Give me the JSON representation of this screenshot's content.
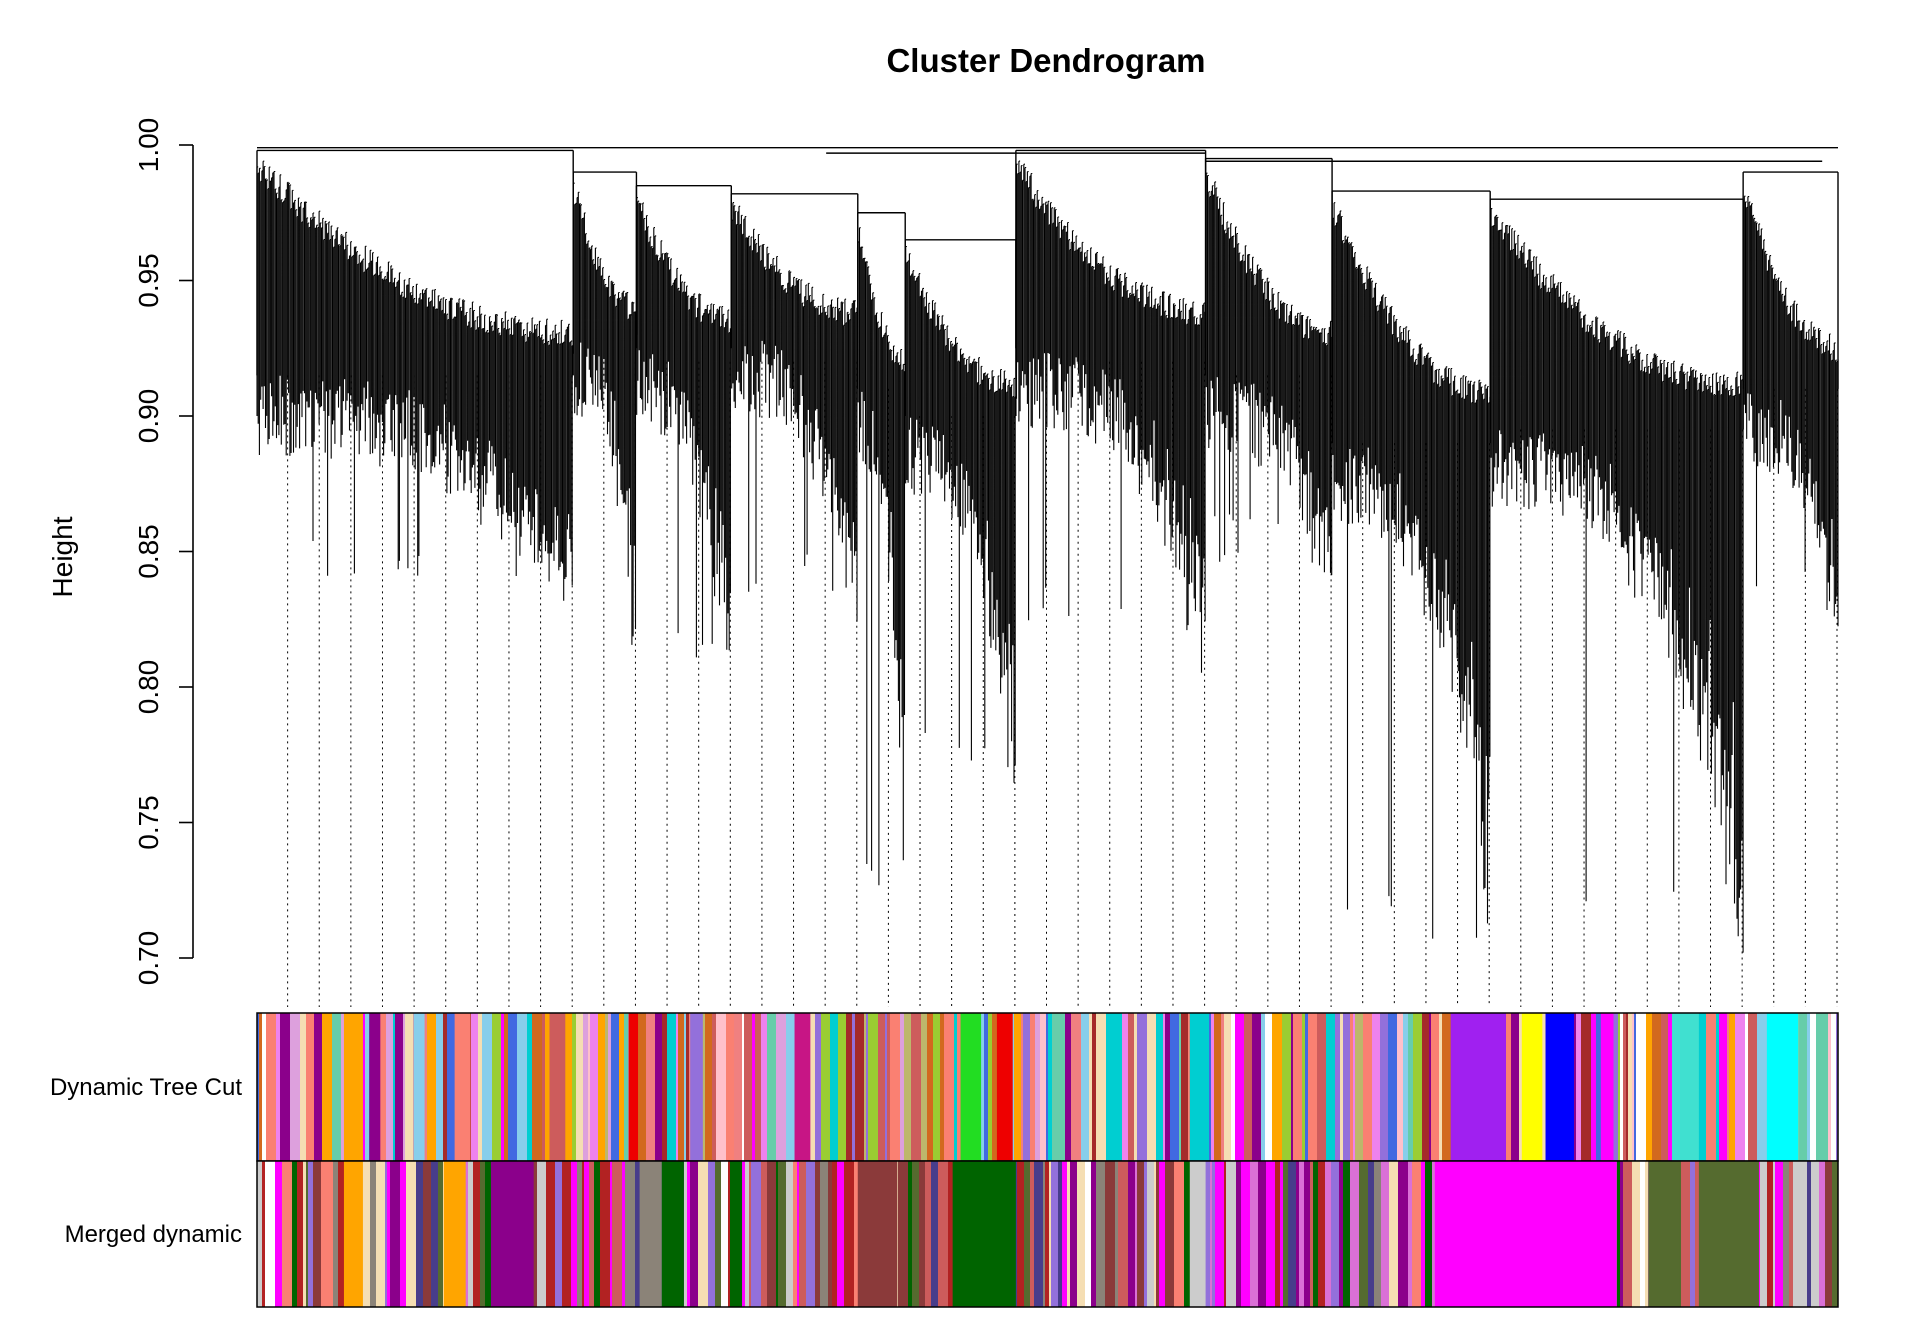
{
  "chart_data": {
    "type": "dendrogram",
    "title": "Cluster Dendrogram",
    "ylabel": "Height",
    "xlabel": "",
    "ylim": [
      0.7,
      1.0
    ],
    "y_ticks": [
      {
        "value": 0.7,
        "label": "0.70"
      },
      {
        "value": 0.75,
        "label": "0.75"
      },
      {
        "value": 0.8,
        "label": "0.80"
      },
      {
        "value": 0.85,
        "label": "0.85"
      },
      {
        "value": 0.9,
        "label": "0.90"
      },
      {
        "value": 0.95,
        "label": "0.95"
      },
      {
        "value": 1.0,
        "label": "1.00"
      }
    ],
    "leaf_range": [
      0,
      1
    ],
    "guide_lines": {
      "count": 50,
      "style": "dotted"
    },
    "branches": [
      {
        "start": 0.0,
        "end": 0.2,
        "top": 0.998,
        "base": 0.915,
        "min": 0.84
      },
      {
        "start": 0.2,
        "end": 0.24,
        "top": 0.99,
        "base": 0.93,
        "min": 0.815
      },
      {
        "start": 0.24,
        "end": 0.3,
        "top": 0.985,
        "base": 0.925,
        "min": 0.805
      },
      {
        "start": 0.3,
        "end": 0.38,
        "top": 0.982,
        "base": 0.93,
        "min": 0.83
      },
      {
        "start": 0.38,
        "end": 0.41,
        "top": 0.975,
        "base": 0.91,
        "min": 0.715
      },
      {
        "start": 0.41,
        "end": 0.48,
        "top": 0.965,
        "base": 0.9,
        "min": 0.765
      },
      {
        "start": 0.48,
        "end": 0.6,
        "top": 0.998,
        "base": 0.925,
        "min": 0.82
      },
      {
        "start": 0.6,
        "end": 0.68,
        "top": 0.995,
        "base": 0.915,
        "min": 0.845
      },
      {
        "start": 0.68,
        "end": 0.78,
        "top": 0.983,
        "base": 0.89,
        "min": 0.705
      },
      {
        "start": 0.78,
        "end": 0.94,
        "top": 0.98,
        "base": 0.895,
        "min": 0.705
      },
      {
        "start": 0.94,
        "end": 1.0,
        "top": 0.99,
        "base": 0.91,
        "min": 0.83
      }
    ],
    "color_bands": [
      {
        "label": "Dynamic Tree Cut",
        "blocks": [
          {
            "start": 0.055,
            "end": 0.067,
            "color": "#FFA500"
          },
          {
            "start": 0.071,
            "end": 0.078,
            "color": "#8B008B"
          },
          {
            "start": 0.099,
            "end": 0.106,
            "color": "#87CEEB"
          },
          {
            "start": 0.125,
            "end": 0.135,
            "color": "#FA8072"
          },
          {
            "start": 0.185,
            "end": 0.195,
            "color": "#CD5C5C"
          },
          {
            "start": 0.235,
            "end": 0.241,
            "color": "#EE0000"
          },
          {
            "start": 0.274,
            "end": 0.282,
            "color": "#9370DB"
          },
          {
            "start": 0.34,
            "end": 0.35,
            "color": "#C71585"
          },
          {
            "start": 0.445,
            "end": 0.458,
            "color": "#22DD22"
          },
          {
            "start": 0.468,
            "end": 0.478,
            "color": "#EE0000"
          },
          {
            "start": 0.59,
            "end": 0.6,
            "color": "#00CED1"
          },
          {
            "start": 0.755,
            "end": 0.79,
            "color": "#A020F0"
          },
          {
            "start": 0.8,
            "end": 0.813,
            "color": "#FFFF00"
          },
          {
            "start": 0.815,
            "end": 0.833,
            "color": "#0000FF"
          },
          {
            "start": 0.85,
            "end": 0.858,
            "color": "#FF00FF"
          },
          {
            "start": 0.895,
            "end": 0.912,
            "color": "#40E0D0"
          },
          {
            "start": 0.955,
            "end": 0.975,
            "color": "#00FFFF"
          }
        ],
        "palette": [
          "#FA8072",
          "#9ACD32",
          "#8B008B",
          "#FFA500",
          "#DDA0DD",
          "#87CEEB",
          "#FFC0CB",
          "#CD5C5C",
          "#4169E1",
          "#F5DEB3",
          "#FF00FF",
          "#A52A2A",
          "#66CDAA",
          "#9370DB",
          "#EE82EE",
          "#00CED1",
          "#BDB76B",
          "#FFFFFF",
          "#F08080",
          "#D2691E"
        ]
      },
      {
        "label": "Merged dynamic",
        "blocks": [
          {
            "start": 0.055,
            "end": 0.067,
            "color": "#FFA500"
          },
          {
            "start": 0.118,
            "end": 0.132,
            "color": "#FFA500"
          },
          {
            "start": 0.148,
            "end": 0.175,
            "color": "#8B008B"
          },
          {
            "start": 0.242,
            "end": 0.256,
            "color": "#8B8378"
          },
          {
            "start": 0.256,
            "end": 0.27,
            "color": "#006400"
          },
          {
            "start": 0.38,
            "end": 0.405,
            "color": "#8B3A3A"
          },
          {
            "start": 0.44,
            "end": 0.48,
            "color": "#006400"
          },
          {
            "start": 0.59,
            "end": 0.6,
            "color": "#CCCCCC"
          },
          {
            "start": 0.745,
            "end": 0.86,
            "color": "#FF00FF"
          },
          {
            "start": 0.88,
            "end": 0.9,
            "color": "#556B2F"
          },
          {
            "start": 0.912,
            "end": 0.95,
            "color": "#556B2F"
          }
        ],
        "palette": [
          "#FF00FF",
          "#8B008B",
          "#8B8378",
          "#006400",
          "#8B3A3A",
          "#FA8072",
          "#CCCCCC",
          "#556B2F",
          "#9370DB",
          "#F5DEB3",
          "#FFFFFF",
          "#DA70D6",
          "#483D8B",
          "#B22222",
          "#CD5C5C"
        ]
      }
    ]
  }
}
